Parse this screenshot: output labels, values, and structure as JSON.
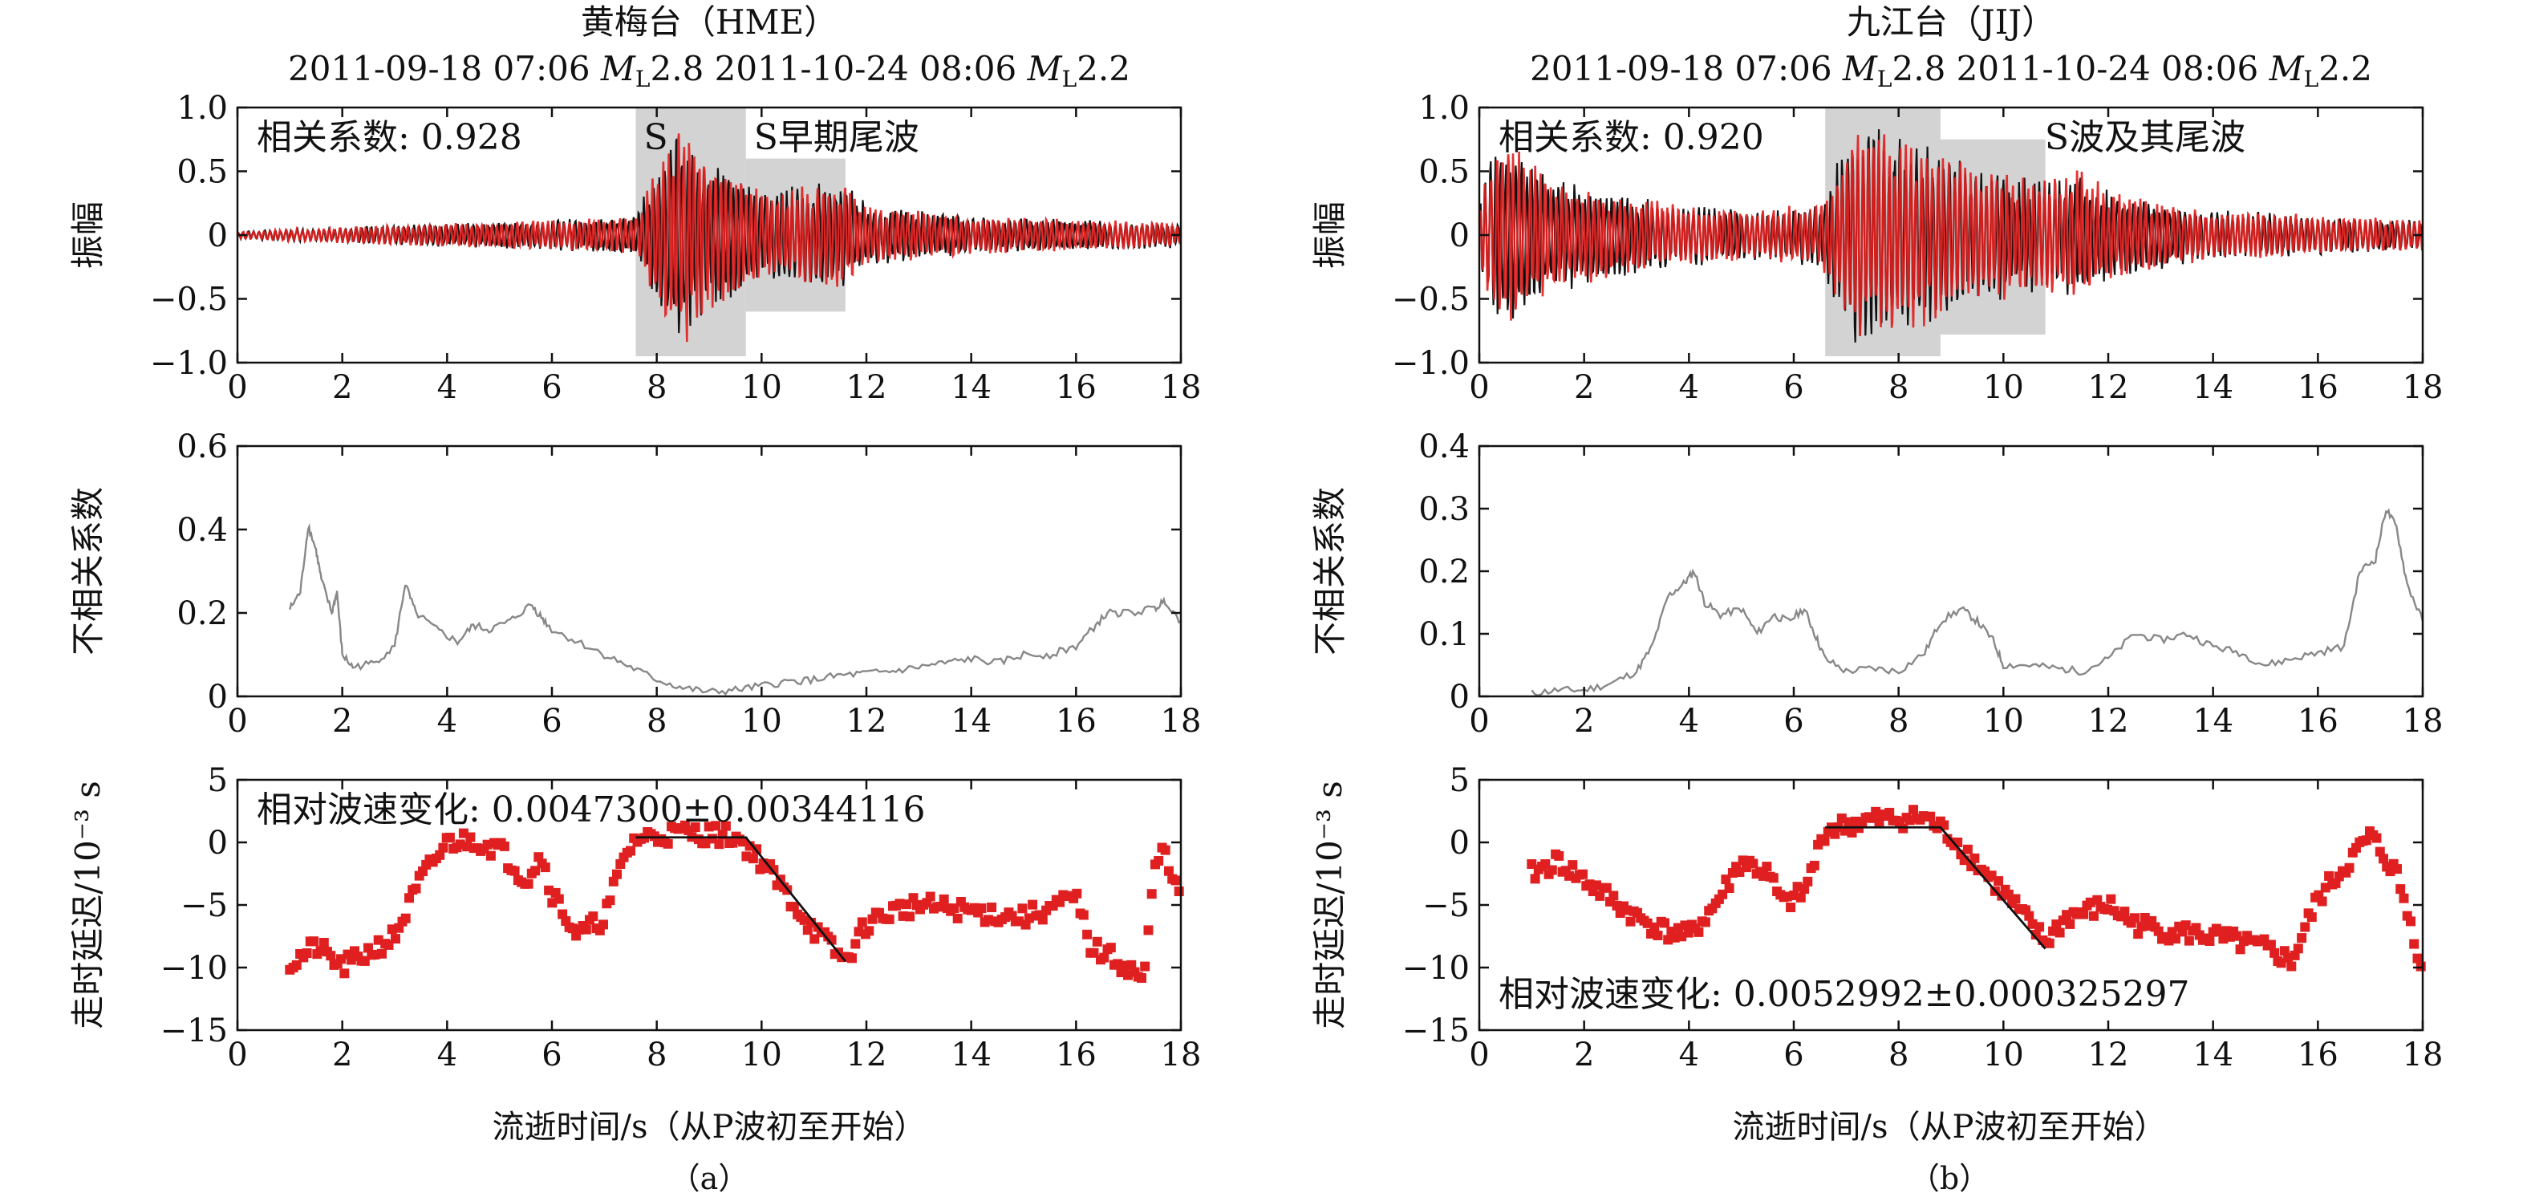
{
  "figure": {
    "panel_a_label": "（a）",
    "panel_b_label": "（b）",
    "xlabel": "流逝时间/s（从P波初至开始）"
  },
  "chart_data": [
    {
      "type": "line",
      "panel": "a-waveform",
      "title": "黄梅台（HME）",
      "event1": "2011-09-18 07:06",
      "event1_mag": "2.8",
      "event2": "2011-10-24 08:06",
      "event2_mag": "2.2",
      "ml_main": "M",
      "ml_sub": "L",
      "ylabel": "振幅",
      "xlim": [
        0,
        18
      ],
      "ylim": [
        -1,
        1
      ],
      "xticks": [
        "0",
        "2",
        "4",
        "6",
        "8",
        "10",
        "12",
        "14",
        "16",
        "18"
      ],
      "yticks": [
        "−1.0",
        "−0.5",
        "0",
        "0.5",
        "1.0"
      ],
      "annotation": "相关系数: 0.928",
      "windows": [
        {
          "label": "S",
          "x0": 7.6,
          "x1": 9.7,
          "y0": -0.95,
          "y1": 1.0
        },
        {
          "label": "S早期尾波",
          "x0": 9.7,
          "x1": 11.6,
          "y0": -0.6,
          "y1": 0.6
        }
      ],
      "series": [
        {
          "color": "#111111",
          "seed": 11,
          "amp_profile": [
            [
              0,
              0.03
            ],
            [
              3,
              0.08
            ],
            [
              6,
              0.12
            ],
            [
              7.6,
              0.15
            ],
            [
              8.0,
              0.55
            ],
            [
              8.5,
              0.9
            ],
            [
              9.0,
              0.6
            ],
            [
              10.0,
              0.35
            ],
            [
              11.5,
              0.45
            ],
            [
              12,
              0.25
            ],
            [
              14,
              0.15
            ],
            [
              18,
              0.1
            ]
          ]
        },
        {
          "color": "#e02020",
          "seed": 12,
          "amp_profile": [
            [
              0,
              0.03
            ],
            [
              3,
              0.08
            ],
            [
              6,
              0.12
            ],
            [
              7.6,
              0.15
            ],
            [
              8.0,
              0.55
            ],
            [
              8.5,
              0.95
            ],
            [
              9.0,
              0.6
            ],
            [
              10.0,
              0.35
            ],
            [
              11.5,
              0.45
            ],
            [
              12,
              0.25
            ],
            [
              14,
              0.15
            ],
            [
              18,
              0.1
            ]
          ]
        }
      ]
    },
    {
      "type": "line",
      "panel": "a-decorrelation",
      "ylabel": "不相关系数",
      "xlim": [
        0,
        18
      ],
      "ylim": [
        0,
        0.6
      ],
      "xticks": [
        "0",
        "2",
        "4",
        "6",
        "8",
        "10",
        "12",
        "14",
        "16",
        "18"
      ],
      "yticks": [
        "0",
        "0.2",
        "0.4",
        "0.6"
      ],
      "series": [
        {
          "color": "#888888",
          "x": [
            1.0,
            1.2,
            1.35,
            1.5,
            1.6,
            1.8,
            1.9,
            2.0,
            2.2,
            2.6,
            3.0,
            3.2,
            3.4,
            3.8,
            4.2,
            4.5,
            4.8,
            5.2,
            5.6,
            5.8,
            6.0,
            6.5,
            7.0,
            7.5,
            8.0,
            8.5,
            9.0,
            9.5,
            10.0,
            10.5,
            11.0,
            11.5,
            12.0,
            12.5,
            13.0,
            13.5,
            14.0,
            14.5,
            15.0,
            15.5,
            16.0,
            16.3,
            16.6,
            17.0,
            17.5,
            17.7,
            18.0
          ],
          "y": [
            0.21,
            0.25,
            0.41,
            0.35,
            0.28,
            0.2,
            0.25,
            0.1,
            0.07,
            0.08,
            0.12,
            0.27,
            0.2,
            0.16,
            0.13,
            0.17,
            0.16,
            0.18,
            0.22,
            0.19,
            0.16,
            0.13,
            0.1,
            0.07,
            0.04,
            0.02,
            0.01,
            0.015,
            0.025,
            0.035,
            0.04,
            0.05,
            0.055,
            0.06,
            0.07,
            0.08,
            0.09,
            0.08,
            0.1,
            0.1,
            0.12,
            0.16,
            0.2,
            0.2,
            0.21,
            0.23,
            0.18
          ]
        }
      ]
    },
    {
      "type": "scatter",
      "panel": "a-delay",
      "ylabel": "走时延迟/10⁻³ s",
      "xlim": [
        0,
        18
      ],
      "ylim": [
        -15,
        5
      ],
      "xticks": [
        "0",
        "2",
        "4",
        "6",
        "8",
        "10",
        "12",
        "14",
        "16",
        "18"
      ],
      "yticks": [
        "−15",
        "−10",
        "−5",
        "0",
        "5"
      ],
      "annotation": "相对波速变化: 0.0047300±0.00344116",
      "fit": {
        "x": [
          7.6,
          9.7,
          11.6
        ],
        "y": [
          0.4,
          0.4,
          -9.5
        ]
      },
      "series": [
        {
          "color": "#e02020",
          "seed": 21,
          "curve": [
            [
              1,
              -9.8
            ],
            [
              1.5,
              -8.3
            ],
            [
              2,
              -10
            ],
            [
              2.5,
              -8.8
            ],
            [
              3,
              -7.5
            ],
            [
              3.5,
              -3
            ],
            [
              4,
              0
            ],
            [
              4.5,
              0.2
            ],
            [
              5,
              -0.5
            ],
            [
              5.5,
              -3
            ],
            [
              5.8,
              -1
            ],
            [
              6,
              -4
            ],
            [
              6.5,
              -7.5
            ],
            [
              7,
              -6
            ],
            [
              7.4,
              -1
            ],
            [
              7.6,
              0.3
            ],
            [
              8.5,
              0.8
            ],
            [
              9.5,
              0.5
            ],
            [
              10,
              -1.5
            ],
            [
              11,
              -7
            ],
            [
              11.6,
              -9.5
            ],
            [
              12,
              -6.5
            ],
            [
              12.5,
              -5.5
            ],
            [
              13,
              -5
            ],
            [
              14,
              -5.5
            ],
            [
              15,
              -6
            ],
            [
              16,
              -4.5
            ],
            [
              16.3,
              -8.5
            ],
            [
              16.6,
              -9
            ],
            [
              17,
              -10
            ],
            [
              17.3,
              -11
            ],
            [
              17.5,
              -2
            ],
            [
              17.7,
              -0.5
            ],
            [
              18,
              -5
            ]
          ]
        }
      ]
    },
    {
      "type": "line",
      "panel": "b-waveform",
      "title": "九江台（JIJ）",
      "event1": "2011-09-18 07:06",
      "event1_mag": "2.8",
      "event2": "2011-10-24 08:06",
      "event2_mag": "2.2",
      "ml_main": "M",
      "ml_sub": "L",
      "ylabel": "振幅",
      "xlim": [
        0,
        18
      ],
      "ylim": [
        -1,
        1
      ],
      "xticks": [
        "0",
        "2",
        "4",
        "6",
        "8",
        "10",
        "12",
        "14",
        "16",
        "18"
      ],
      "yticks": [
        "−1.0",
        "−0.5",
        "0",
        "0.5",
        "1.0"
      ],
      "annotation": "相关系数: 0.920",
      "windows": [
        {
          "label": "",
          "x0": 6.6,
          "x1": 8.8,
          "y0": -0.95,
          "y1": 1.0
        },
        {
          "label": "S波及其尾波",
          "x0": 8.8,
          "x1": 10.8,
          "y0": -0.78,
          "y1": 0.75
        }
      ],
      "series": [
        {
          "color": "#111111",
          "seed": 31,
          "amp_profile": [
            [
              0,
              0.3
            ],
            [
              0.4,
              0.85
            ],
            [
              0.8,
              0.65
            ],
            [
              1.5,
              0.45
            ],
            [
              3,
              0.3
            ],
            [
              5,
              0.2
            ],
            [
              6.5,
              0.25
            ],
            [
              7.2,
              0.95
            ],
            [
              8.3,
              0.75
            ],
            [
              9.5,
              0.55
            ],
            [
              10.8,
              0.45
            ],
            [
              11.5,
              0.5
            ],
            [
              12,
              0.35
            ],
            [
              14,
              0.2
            ],
            [
              18,
              0.12
            ]
          ]
        },
        {
          "color": "#e02020",
          "seed": 32,
          "amp_profile": [
            [
              0,
              0.3
            ],
            [
              0.4,
              0.9
            ],
            [
              0.8,
              0.65
            ],
            [
              1.5,
              0.45
            ],
            [
              3,
              0.3
            ],
            [
              5,
              0.2
            ],
            [
              6.5,
              0.25
            ],
            [
              7.2,
              0.9
            ],
            [
              8.3,
              0.75
            ],
            [
              9.5,
              0.55
            ],
            [
              10.8,
              0.45
            ],
            [
              11.5,
              0.55
            ],
            [
              12,
              0.35
            ],
            [
              14,
              0.2
            ],
            [
              18,
              0.12
            ]
          ]
        }
      ]
    },
    {
      "type": "line",
      "panel": "b-decorrelation",
      "ylabel": "不相关系数",
      "xlim": [
        0,
        18
      ],
      "ylim": [
        0,
        0.4
      ],
      "xticks": [
        "0",
        "2",
        "4",
        "6",
        "8",
        "10",
        "12",
        "14",
        "16",
        "18"
      ],
      "yticks": [
        "0",
        "0.1",
        "0.2",
        "0.3",
        "0.4"
      ],
      "series": [
        {
          "color": "#888888",
          "x": [
            1.0,
            1.5,
            2.0,
            2.5,
            3.0,
            3.3,
            3.6,
            3.9,
            4.1,
            4.3,
            4.6,
            5.0,
            5.3,
            5.6,
            5.9,
            6.2,
            6.4,
            6.6,
            7.0,
            7.5,
            8.0,
            8.5,
            8.8,
            9.2,
            9.5,
            9.8,
            10.0,
            10.5,
            11.0,
            11.5,
            12.0,
            12.5,
            13.0,
            13.5,
            14.0,
            14.5,
            15.0,
            15.5,
            16.0,
            16.5,
            16.8,
            17.1,
            17.3,
            17.5,
            17.7,
            18.0
          ],
          "y": [
            0.005,
            0.01,
            0.01,
            0.02,
            0.04,
            0.08,
            0.16,
            0.18,
            0.2,
            0.15,
            0.13,
            0.14,
            0.1,
            0.13,
            0.12,
            0.14,
            0.1,
            0.06,
            0.04,
            0.045,
            0.04,
            0.07,
            0.12,
            0.14,
            0.12,
            0.09,
            0.05,
            0.05,
            0.045,
            0.04,
            0.06,
            0.1,
            0.09,
            0.1,
            0.08,
            0.07,
            0.05,
            0.06,
            0.07,
            0.08,
            0.2,
            0.22,
            0.3,
            0.27,
            0.18,
            0.12
          ]
        }
      ]
    },
    {
      "type": "scatter",
      "panel": "b-delay",
      "ylabel": "走时延迟/10⁻³ s",
      "xlim": [
        0,
        18
      ],
      "ylim": [
        -15,
        5
      ],
      "xticks": [
        "0",
        "2",
        "4",
        "6",
        "8",
        "10",
        "12",
        "14",
        "16",
        "18"
      ],
      "yticks": [
        "−15",
        "−10",
        "−5",
        "0",
        "5"
      ],
      "annotation": "相对波速变化: 0.0052992±0.000325297",
      "fit": {
        "x": [
          6.6,
          8.8,
          10.8
        ],
        "y": [
          1.2,
          1.2,
          -8.5
        ]
      },
      "series": [
        {
          "color": "#e02020",
          "seed": 41,
          "curve": [
            [
              1,
              -2.5
            ],
            [
              1.5,
              -1.5
            ],
            [
              2,
              -3
            ],
            [
              2.5,
              -4.5
            ],
            [
              3,
              -6
            ],
            [
              3.5,
              -7
            ],
            [
              4,
              -7.5
            ],
            [
              4.5,
              -5
            ],
            [
              5,
              -1.5
            ],
            [
              5.5,
              -2.5
            ],
            [
              5.8,
              -5
            ],
            [
              6.2,
              -4
            ],
            [
              6.6,
              1
            ],
            [
              7.5,
              1.8
            ],
            [
              8.5,
              2
            ],
            [
              9,
              0.5
            ],
            [
              10,
              -4
            ],
            [
              10.8,
              -8
            ],
            [
              11.2,
              -6
            ],
            [
              12,
              -5
            ],
            [
              12.5,
              -6.5
            ],
            [
              13,
              -7
            ],
            [
              14,
              -7.5
            ],
            [
              15,
              -8.5
            ],
            [
              15.5,
              -9.5
            ],
            [
              16,
              -4.5
            ],
            [
              16.5,
              -2
            ],
            [
              17,
              0.5
            ],
            [
              17.5,
              -2.5
            ],
            [
              18,
              -10
            ]
          ]
        }
      ]
    }
  ]
}
